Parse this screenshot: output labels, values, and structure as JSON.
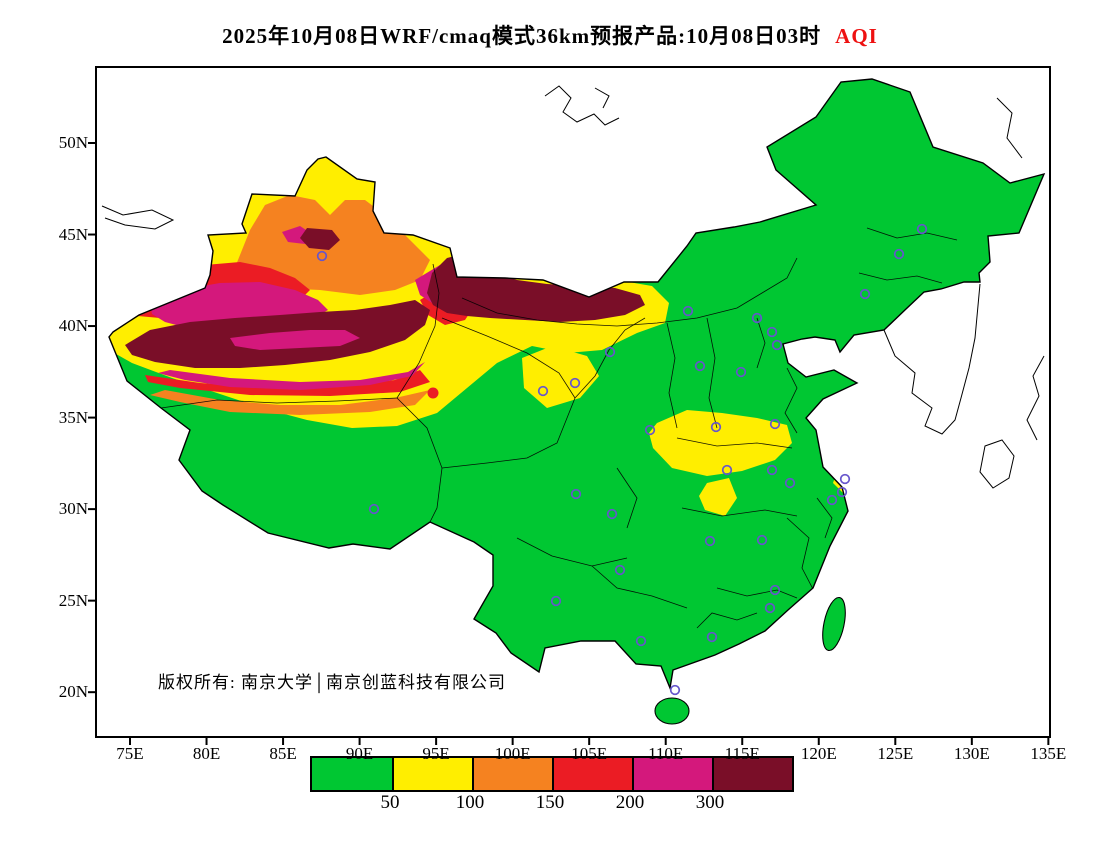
{
  "title": {
    "main": "2025年10月08日WRF/cmaq模式36km预报产品:10月08日03时",
    "variable": "AQI"
  },
  "map": {
    "copyright": "版权所有: 南京大学│南京创蓝科技有限公司",
    "city_markers": [
      [
        225,
        188
      ],
      [
        513,
        284
      ],
      [
        591,
        243
      ],
      [
        660,
        250
      ],
      [
        675,
        264
      ],
      [
        680,
        277
      ],
      [
        603,
        298
      ],
      [
        644,
        304
      ],
      [
        446,
        323
      ],
      [
        478,
        315
      ],
      [
        553,
        362
      ],
      [
        619,
        359
      ],
      [
        678,
        356
      ],
      [
        630,
        402
      ],
      [
        675,
        402
      ],
      [
        693,
        415
      ],
      [
        748,
        411
      ],
      [
        745,
        424
      ],
      [
        479,
        426
      ],
      [
        515,
        446
      ],
      [
        277,
        441
      ],
      [
        613,
        473
      ],
      [
        665,
        472
      ],
      [
        523,
        502
      ],
      [
        459,
        533
      ],
      [
        544,
        573
      ],
      [
        615,
        569
      ],
      [
        673,
        540
      ],
      [
        678,
        522
      ],
      [
        735,
        432
      ],
      [
        578,
        622
      ],
      [
        825,
        161
      ],
      [
        802,
        186
      ],
      [
        768,
        226
      ]
    ]
  },
  "axes": {
    "lat_labels": [
      "50N",
      "45N",
      "40N",
      "35N",
      "30N",
      "25N",
      "20N"
    ],
    "lon_labels": [
      "75E",
      "80E",
      "85E",
      "90E",
      "95E",
      "100E",
      "105E",
      "110E",
      "115E",
      "120E",
      "125E",
      "130E",
      "135E"
    ]
  },
  "legend": {
    "labels": [
      "50",
      "100",
      "150",
      "200",
      "300"
    ],
    "colors": [
      "#00C732",
      "#FFEE00",
      "#F58220",
      "#EB1C24",
      "#D4187C",
      "#7A0E28"
    ]
  },
  "colors": {
    "green": "#00C732",
    "yellow": "#FFEE00",
    "orange": "#F58220",
    "red": "#EB1C24",
    "magenta": "#D4187C",
    "maroon": "#7A0E28",
    "marker": "#6655CC",
    "title_accent": "#EE1111",
    "outline": "#000000"
  }
}
